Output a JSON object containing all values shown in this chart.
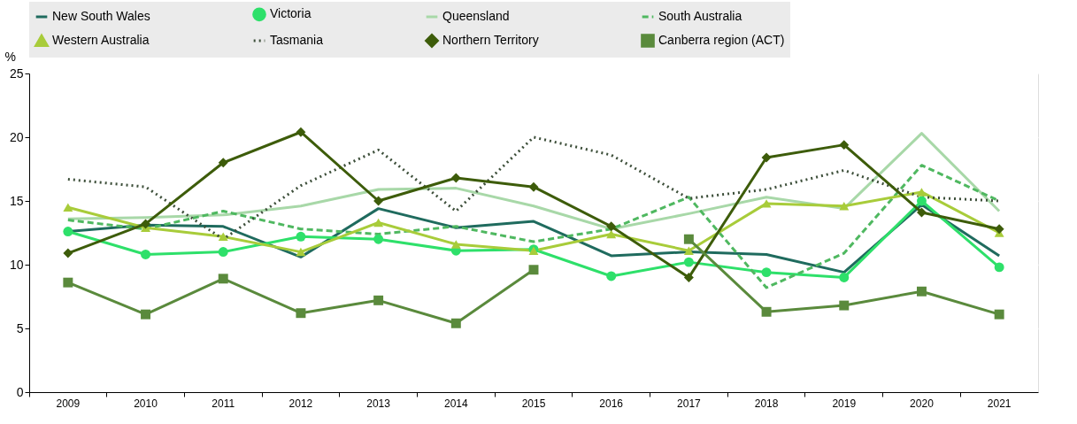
{
  "chart_data": {
    "type": "line",
    "ylabel": "%",
    "categories": [
      "2009",
      "2010",
      "2011",
      "2012",
      "2013",
      "2014",
      "2015",
      "2016",
      "2017",
      "2018",
      "2019",
      "2020",
      "2021"
    ],
    "ylim": [
      0,
      25
    ],
    "yticks": [
      0,
      5,
      10,
      15,
      20,
      25
    ],
    "grid": true,
    "legend": "top",
    "series": [
      {
        "name": "New South Wales",
        "color": "#1f6b5e",
        "marker": "none",
        "line_style": "solid",
        "values": [
          12.6,
          13.1,
          13.0,
          10.6,
          14.4,
          12.9,
          13.4,
          10.7,
          11.0,
          10.8,
          9.4,
          14.7,
          10.7
        ]
      },
      {
        "name": "Victoria",
        "color": "#2ee06a",
        "marker": "circle",
        "line_style": "solid",
        "values": [
          12.6,
          10.8,
          11.0,
          12.2,
          12.0,
          11.1,
          11.2,
          9.1,
          10.2,
          9.4,
          9.0,
          15.0,
          9.8
        ]
      },
      {
        "name": "Queensland",
        "color": "#a8d8a8",
        "marker": "none",
        "line_style": "solid",
        "values": [
          13.6,
          13.7,
          13.9,
          14.6,
          15.9,
          16.0,
          14.6,
          12.8,
          14.0,
          15.3,
          14.4,
          20.3,
          14.2
        ]
      },
      {
        "name": "South Australia",
        "color": "#4fb860",
        "marker": "none",
        "line_style": "dashed",
        "values": [
          13.5,
          12.8,
          14.2,
          12.8,
          12.4,
          13.0,
          11.8,
          12.8,
          15.3,
          8.2,
          10.9,
          17.8,
          15.0
        ]
      },
      {
        "name": "Western Australia",
        "color": "#a8cc3a",
        "marker": "triangle",
        "line_style": "solid",
        "values": [
          14.5,
          12.9,
          12.2,
          11.0,
          13.3,
          11.6,
          11.1,
          12.4,
          11.1,
          14.8,
          14.6,
          15.7,
          12.5
        ]
      },
      {
        "name": "Tasmania",
        "color": "#3d4f3a",
        "marker": "none",
        "line_style": "dotted",
        "values": [
          16.7,
          16.1,
          12.0,
          16.2,
          19.0,
          14.2,
          20.0,
          18.6,
          15.2,
          15.9,
          17.4,
          15.3,
          15.0
        ]
      },
      {
        "name": "Northern Territory",
        "color": "#3d5c0a",
        "marker": "diamond",
        "line_style": "solid",
        "values": [
          10.9,
          13.2,
          18.0,
          20.4,
          15.0,
          16.8,
          16.1,
          13.0,
          9.0,
          18.4,
          19.4,
          14.1,
          12.8
        ]
      },
      {
        "name": "Canberra region (ACT)",
        "color": "#5a8a3c",
        "marker": "square",
        "line_style": "solid",
        "values": [
          8.6,
          6.1,
          8.9,
          6.2,
          7.2,
          5.4,
          9.6,
          null,
          12.0,
          6.3,
          6.8,
          7.9,
          6.1
        ]
      }
    ]
  }
}
